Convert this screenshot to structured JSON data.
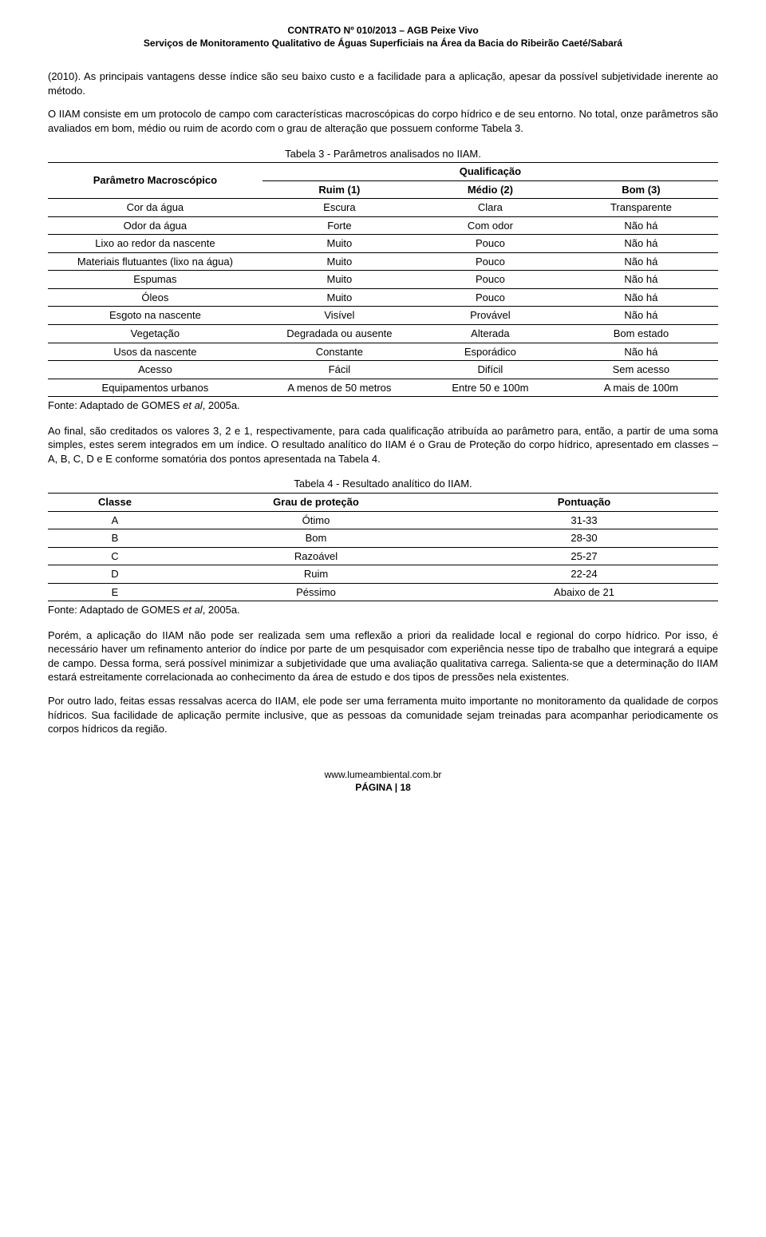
{
  "header": {
    "line1": "CONTRATO Nº 010/2013 – AGB Peixe Vivo",
    "line2": "Serviços de Monitoramento Qualitativo de Águas Superficiais na Área da Bacia do Ribeirão Caeté/Sabará"
  },
  "para1": "(2010). As principais vantagens desse índice são seu baixo custo e a facilidade para a aplicação, apesar da possível subjetividade inerente ao método.",
  "para2": "O IIAM consiste em um protocolo de campo com características macroscópicas do corpo hídrico e de seu entorno. No total, onze parâmetros são avaliados em bom, médio ou ruim de acordo com o grau de alteração que possuem conforme Tabela 3.",
  "table3": {
    "caption": "Tabela 3 - Parâmetros analisados no IIAM.",
    "h_rowlabel": "Parâmetro Macroscópico",
    "h_group": "Qualificação",
    "h_cols": [
      "Ruim (1)",
      "Médio (2)",
      "Bom (3)"
    ],
    "rows": [
      [
        "Cor da água",
        "Escura",
        "Clara",
        "Transparente"
      ],
      [
        "Odor da água",
        "Forte",
        "Com odor",
        "Não há"
      ],
      [
        "Lixo ao redor da nascente",
        "Muito",
        "Pouco",
        "Não há"
      ],
      [
        "Materiais flutuantes (lixo na água)",
        "Muito",
        "Pouco",
        "Não há"
      ],
      [
        "Espumas",
        "Muito",
        "Pouco",
        "Não há"
      ],
      [
        "Óleos",
        "Muito",
        "Pouco",
        "Não há"
      ],
      [
        "Esgoto na nascente",
        "Visível",
        "Provável",
        "Não há"
      ],
      [
        "Vegetação",
        "Degradada ou ausente",
        "Alterada",
        "Bom estado"
      ],
      [
        "Usos da nascente",
        "Constante",
        "Esporádico",
        "Não há"
      ],
      [
        "Acesso",
        "Fácil",
        "Difícil",
        "Sem acesso"
      ],
      [
        "Equipamentos urbanos",
        "A menos de 50 metros",
        "Entre 50 e 100m",
        "A mais de 100m"
      ]
    ]
  },
  "source1_a": "Fonte: Adaptado de GOMES ",
  "source1_b": "et al",
  "source1_c": ", 2005a.",
  "para3": "Ao final, são creditados os valores 3, 2 e 1, respectivamente, para cada qualificação atribuída ao parâmetro para, então, a partir de uma soma simples, estes serem integrados em um índice. O resultado analítico do IIAM é o Grau de Proteção do corpo hídrico, apresentado em classes – A, B, C, D e E conforme somatória dos pontos apresentada na Tabela 4.",
  "table4": {
    "caption": "Tabela 4 - Resultado analítico do IIAM.",
    "h_cols": [
      "Classe",
      "Grau de proteção",
      "Pontuação"
    ],
    "rows": [
      [
        "A",
        "Ótimo",
        "31-33"
      ],
      [
        "B",
        "Bom",
        "28-30"
      ],
      [
        "C",
        "Razoável",
        "25-27"
      ],
      [
        "D",
        "Ruim",
        "22-24"
      ],
      [
        "E",
        "Péssimo",
        "Abaixo de 21"
      ]
    ]
  },
  "source2_a": "Fonte: Adaptado de GOMES ",
  "source2_b": "et al",
  "source2_c": ", 2005a.",
  "para4": "Porém, a aplicação do IIAM não pode ser realizada sem uma reflexão a priori da realidade local e regional do corpo hídrico. Por isso, é necessário haver um refinamento anterior do índice por parte de um pesquisador com experiência nesse tipo de trabalho que integrará a equipe de campo. Dessa forma, será possível minimizar a subjetividade que uma avaliação qualitativa carrega. Salienta-se que a determinação do IIAM estará estreitamente correlacionada ao conhecimento da área de estudo e dos tipos de pressões nela existentes.",
  "para5": "Por outro lado, feitas essas ressalvas acerca do IIAM, ele pode ser uma ferramenta muito importante no monitoramento da qualidade de corpos hídricos. Sua facilidade de aplicação permite inclusive, que as pessoas da comunidade sejam treinadas para acompanhar periodicamente os corpos hídricos da região.",
  "footer": {
    "url": "www.lumeambiental.com.br",
    "page": "PÁGINA | 18"
  },
  "styles": {
    "colors": {
      "text": "#000000",
      "bg": "#ffffff",
      "rule": "#000000"
    },
    "fonts": {
      "body_family": "Verdana",
      "body_size_pt": 10,
      "header_size_pt": 9
    },
    "table3_col_widths_pct": [
      32,
      23,
      22,
      23
    ],
    "table4_col_widths_pct": [
      20,
      40,
      40
    ]
  }
}
